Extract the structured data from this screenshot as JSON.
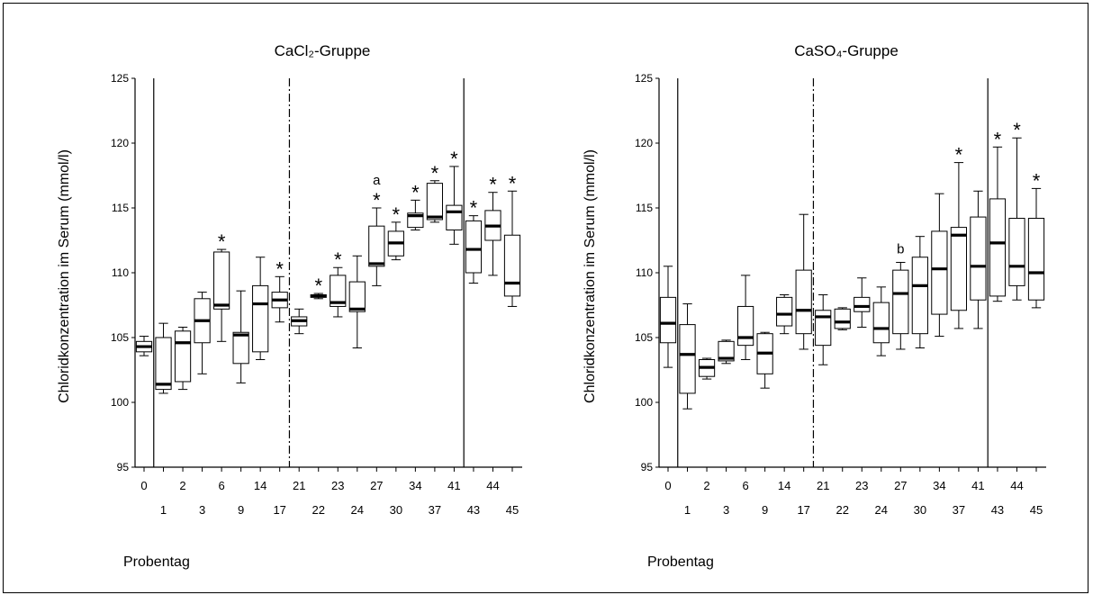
{
  "figure": {
    "xlabel": "Probentag"
  },
  "chart_data": [
    {
      "type": "boxplot",
      "title": "CaCl₂-Gruppe",
      "ylabel": "Chloridkonzentration im Serum (mmol/l)",
      "xlabel": "Probentag",
      "ylim": [
        95,
        125
      ],
      "yticks": [
        95,
        100,
        105,
        110,
        115,
        120,
        125
      ],
      "categories": [
        "0",
        "1",
        "2",
        "3",
        "6",
        "9",
        "14",
        "17",
        "21",
        "22",
        "23",
        "24",
        "27",
        "30",
        "34",
        "37",
        "41",
        "43",
        "44",
        "45"
      ],
      "boxes": [
        {
          "day": "0",
          "min": 103.6,
          "q1": 103.9,
          "median": 104.3,
          "q3": 104.7,
          "max": 105.1,
          "mark": ""
        },
        {
          "day": "1",
          "min": 100.7,
          "q1": 101.0,
          "median": 101.4,
          "q3": 105.0,
          "max": 106.1,
          "mark": ""
        },
        {
          "day": "2",
          "min": 101.0,
          "q1": 101.6,
          "median": 104.6,
          "q3": 105.5,
          "max": 105.8,
          "mark": ""
        },
        {
          "day": "3",
          "min": 102.2,
          "q1": 104.6,
          "median": 106.3,
          "q3": 108.0,
          "max": 108.5,
          "mark": ""
        },
        {
          "day": "6",
          "min": 104.7,
          "q1": 107.2,
          "median": 107.5,
          "q3": 111.6,
          "max": 111.8,
          "mark": "*"
        },
        {
          "day": "9",
          "min": 101.5,
          "q1": 103.0,
          "median": 105.2,
          "q3": 105.4,
          "max": 108.6,
          "mark": ""
        },
        {
          "day": "14",
          "min": 103.3,
          "q1": 103.9,
          "median": 107.6,
          "q3": 109.0,
          "max": 111.2,
          "mark": ""
        },
        {
          "day": "17",
          "min": 106.2,
          "q1": 107.3,
          "median": 107.9,
          "q3": 108.5,
          "max": 109.7,
          "mark": "*"
        },
        {
          "day": "21",
          "min": 105.3,
          "q1": 105.9,
          "median": 106.3,
          "q3": 106.6,
          "max": 107.2,
          "mark": ""
        },
        {
          "day": "22",
          "min": 108.0,
          "q1": 108.1,
          "median": 108.2,
          "q3": 108.3,
          "max": 108.4,
          "mark": "*"
        },
        {
          "day": "23",
          "min": 106.6,
          "q1": 107.4,
          "median": 107.7,
          "q3": 109.8,
          "max": 110.4,
          "mark": "*"
        },
        {
          "day": "24",
          "min": 104.2,
          "q1": 107.0,
          "median": 107.2,
          "q3": 109.3,
          "max": 111.3,
          "mark": ""
        },
        {
          "day": "27",
          "min": 109.0,
          "q1": 110.5,
          "median": 110.7,
          "q3": 113.6,
          "max": 115.0,
          "mark": "*",
          "label": "a"
        },
        {
          "day": "30",
          "min": 111.0,
          "q1": 111.3,
          "median": 112.3,
          "q3": 113.2,
          "max": 113.9,
          "mark": "*"
        },
        {
          "day": "34",
          "min": 113.3,
          "q1": 113.5,
          "median": 114.4,
          "q3": 114.6,
          "max": 115.6,
          "mark": "*"
        },
        {
          "day": "37",
          "min": 113.9,
          "q1": 114.1,
          "median": 114.3,
          "q3": 116.9,
          "max": 117.1,
          "mark": "*"
        },
        {
          "day": "41",
          "min": 112.2,
          "q1": 113.3,
          "median": 114.7,
          "q3": 115.2,
          "max": 118.2,
          "mark": "*"
        },
        {
          "day": "43",
          "min": 109.2,
          "q1": 110.0,
          "median": 111.8,
          "q3": 114.0,
          "max": 114.4,
          "mark": "*"
        },
        {
          "day": "44",
          "min": 109.8,
          "q1": 112.5,
          "median": 113.6,
          "q3": 114.8,
          "max": 116.2,
          "mark": "*"
        },
        {
          "day": "45",
          "min": 107.4,
          "q1": 108.2,
          "median": 109.2,
          "q3": 112.9,
          "max": 116.3,
          "mark": "*"
        }
      ],
      "vlines": [
        {
          "after": "0",
          "style": "solid"
        },
        {
          "after": "17",
          "style": "dashdot"
        },
        {
          "after": "41",
          "style": "solid"
        }
      ]
    },
    {
      "type": "boxplot",
      "title": "CaSO₄-Gruppe",
      "ylabel": "Chloridkonzentration im Serum (mmol/l)",
      "xlabel": "Probentag",
      "ylim": [
        95,
        125
      ],
      "yticks": [
        95,
        100,
        105,
        110,
        115,
        120,
        125
      ],
      "categories": [
        "0",
        "1",
        "2",
        "3",
        "6",
        "9",
        "14",
        "17",
        "21",
        "22",
        "23",
        "24",
        "27",
        "30",
        "34",
        "37",
        "41",
        "43",
        "44",
        "45"
      ],
      "boxes": [
        {
          "day": "0",
          "min": 102.7,
          "q1": 104.6,
          "median": 106.1,
          "q3": 108.1,
          "max": 110.5,
          "mark": ""
        },
        {
          "day": "1",
          "min": 99.5,
          "q1": 100.7,
          "median": 103.7,
          "q3": 106.0,
          "max": 107.6,
          "mark": ""
        },
        {
          "day": "2",
          "min": 101.8,
          "q1": 102.0,
          "median": 102.7,
          "q3": 103.3,
          "max": 103.4,
          "mark": ""
        },
        {
          "day": "3",
          "min": 103.0,
          "q1": 103.2,
          "median": 103.4,
          "q3": 104.7,
          "max": 104.8,
          "mark": ""
        },
        {
          "day": "6",
          "min": 103.3,
          "q1": 104.4,
          "median": 105.0,
          "q3": 107.4,
          "max": 109.8,
          "mark": ""
        },
        {
          "day": "9",
          "min": 101.1,
          "q1": 102.2,
          "median": 103.8,
          "q3": 105.3,
          "max": 105.4,
          "mark": ""
        },
        {
          "day": "14",
          "min": 105.3,
          "q1": 105.9,
          "median": 106.8,
          "q3": 108.1,
          "max": 108.3,
          "mark": ""
        },
        {
          "day": "17",
          "min": 104.1,
          "q1": 105.3,
          "median": 107.1,
          "q3": 110.2,
          "max": 114.5,
          "mark": ""
        },
        {
          "day": "21",
          "min": 102.9,
          "q1": 104.4,
          "median": 106.6,
          "q3": 107.1,
          "max": 108.3,
          "mark": ""
        },
        {
          "day": "22",
          "min": 105.6,
          "q1": 105.7,
          "median": 106.2,
          "q3": 107.2,
          "max": 107.3,
          "mark": ""
        },
        {
          "day": "23",
          "min": 105.8,
          "q1": 107.0,
          "median": 107.4,
          "q3": 108.1,
          "max": 109.6,
          "mark": ""
        },
        {
          "day": "24",
          "min": 103.6,
          "q1": 104.6,
          "median": 105.7,
          "q3": 107.7,
          "max": 108.9,
          "mark": ""
        },
        {
          "day": "27",
          "min": 104.1,
          "q1": 105.3,
          "median": 108.4,
          "q3": 110.2,
          "max": 110.8,
          "mark": "",
          "label": "b"
        },
        {
          "day": "30",
          "min": 104.2,
          "q1": 105.3,
          "median": 109.0,
          "q3": 111.2,
          "max": 112.8,
          "mark": ""
        },
        {
          "day": "34",
          "min": 105.1,
          "q1": 106.8,
          "median": 110.3,
          "q3": 113.2,
          "max": 116.1,
          "mark": ""
        },
        {
          "day": "37",
          "min": 105.7,
          "q1": 107.1,
          "median": 112.9,
          "q3": 113.5,
          "max": 118.5,
          "mark": "*"
        },
        {
          "day": "41",
          "min": 105.7,
          "q1": 107.9,
          "median": 110.5,
          "q3": 114.3,
          "max": 116.3,
          "mark": ""
        },
        {
          "day": "43",
          "min": 107.8,
          "q1": 108.2,
          "median": 112.3,
          "q3": 115.7,
          "max": 119.7,
          "mark": "*"
        },
        {
          "day": "44",
          "min": 107.9,
          "q1": 109.0,
          "median": 110.5,
          "q3": 114.2,
          "max": 120.4,
          "mark": "*"
        },
        {
          "day": "45",
          "min": 107.3,
          "q1": 107.9,
          "median": 110.0,
          "q3": 114.2,
          "max": 116.5,
          "mark": "*"
        }
      ],
      "vlines": [
        {
          "after": "0",
          "style": "solid"
        },
        {
          "after": "17",
          "style": "dashdot"
        },
        {
          "after": "41",
          "style": "solid"
        }
      ]
    }
  ]
}
